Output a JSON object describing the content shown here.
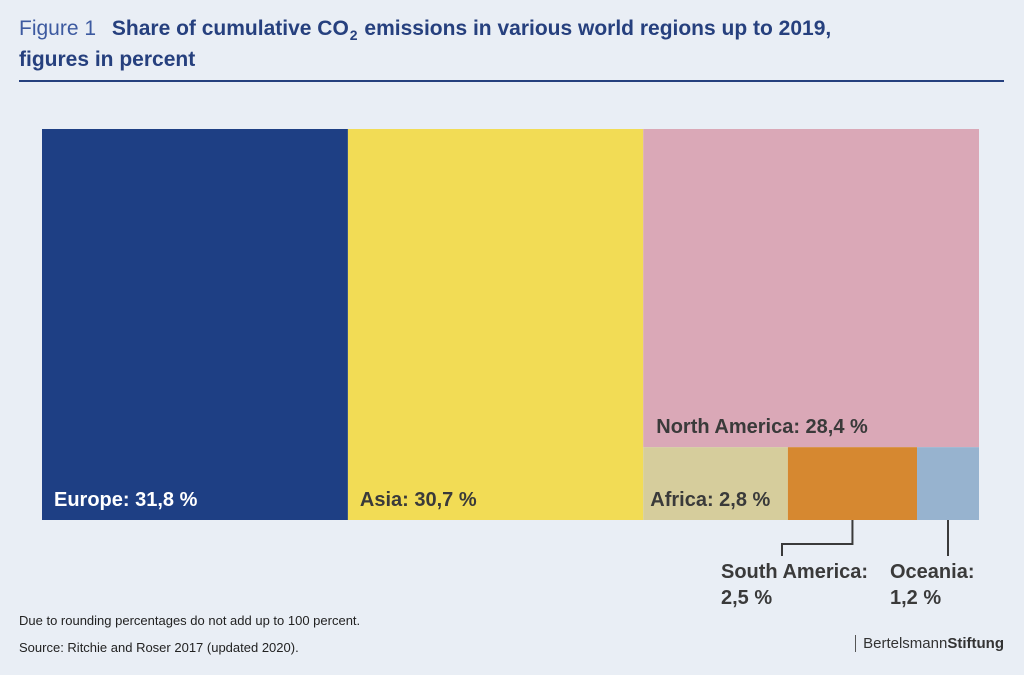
{
  "header": {
    "figure_label": "Figure 1",
    "title_part1": "Share of cumulative CO",
    "title_sub": "2",
    "title_part2": " emissions in various world regions up to 2019,",
    "title_line2": "figures in percent"
  },
  "chart_data": {
    "type": "treemap",
    "title": "Share of cumulative CO2 emissions in various world regions up to 2019, figures in percent",
    "unit": "%",
    "items": [
      {
        "name": "Europe",
        "value": 31.8,
        "label": "Europe: 31,8 %",
        "color": "#1e3f84",
        "text_color": "#ffffff"
      },
      {
        "name": "Asia",
        "value": 30.7,
        "label": "Asia: 30,7 %",
        "color": "#f2dc55",
        "text_color": "#3a3a3a"
      },
      {
        "name": "North America",
        "value": 28.4,
        "label": "North America: 28,4 %",
        "color": "#daa8b7",
        "text_color": "#3a3a3a"
      },
      {
        "name": "Africa",
        "value": 2.8,
        "label": "Africa: 2,8 %",
        "color": "#d6cd9c",
        "text_color": "#3a3a3a"
      },
      {
        "name": "South America",
        "value": 2.5,
        "label": "South America:",
        "label_value": "2,5 %",
        "color": "#d68830",
        "text_color": "#3a3a3a"
      },
      {
        "name": "Oceania",
        "value": 1.2,
        "label": "Oceania:",
        "label_value": "1,2 %",
        "color": "#97b3cf",
        "text_color": "#3a3a3a"
      }
    ]
  },
  "footer": {
    "note": "Due to rounding percentages do not add up to 100 percent.",
    "source": "Source: Ritchie and Roser 2017 (updated 2020).",
    "brand_light": "Bertelsmann",
    "brand_bold": "Stiftung"
  }
}
